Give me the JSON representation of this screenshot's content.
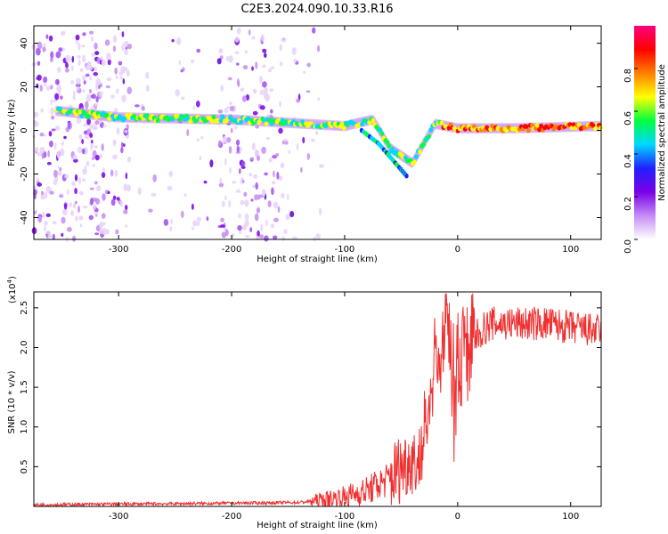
{
  "figure_title": "C2E3.2024.090.10.33.R16",
  "chart_data": [
    {
      "type": "heatmap",
      "xlabel": "Height of straight line (km)",
      "ylabel": "Frequency (Hz)",
      "xlim": [
        -375,
        127
      ],
      "ylim": [
        -50,
        48
      ],
      "xticks": [
        -300,
        -200,
        -100,
        0,
        100
      ],
      "yticks": [
        -40,
        -20,
        0,
        20,
        40
      ],
      "colorbar": {
        "label": "Normalized spectral amplitude",
        "range": [
          0,
          1
        ],
        "ticks": [
          "0.0",
          "0.2",
          "0.4",
          "0.6",
          "0.8"
        ],
        "colormap": [
          "#ffffff",
          "#c58cf5",
          "#7a00e6",
          "#2020ff",
          "#00d8ff",
          "#00ff40",
          "#ffff00",
          "#ff8000",
          "#ff0000",
          "#ff0080"
        ]
      },
      "ridge": {
        "description_points_x": [
          -355,
          -300,
          -200,
          -100,
          -75,
          -60,
          -40,
          -20,
          0,
          50,
          125
        ],
        "description_points_y": [
          9,
          6,
          5,
          2,
          5,
          -8,
          -15,
          3,
          1,
          1,
          2
        ],
        "branch_x": [
          -85,
          -70,
          -60,
          -50,
          -45
        ],
        "branch_y": [
          0,
          -6,
          -12,
          -18,
          -21
        ]
      }
    },
    {
      "type": "line",
      "xlabel": "Height of straight line (km)",
      "ylabel": "SNR (10 * v/v)",
      "yscale_label": "(x10",
      "yscale_exp": "4",
      "yscale_close": ")",
      "xlim": [
        -375,
        127
      ],
      "ylim": [
        0,
        2.7
      ],
      "xticks": [
        -300,
        -200,
        -100,
        0,
        100
      ],
      "yticks": [
        "0.5",
        "1.0",
        "1.5",
        "2.0",
        "2.5"
      ],
      "series": [
        {
          "color": "#f03030",
          "x": [
            -375,
            -300,
            -200,
            -140,
            -120,
            -100,
            -80,
            -60,
            -50,
            -40,
            -35,
            -30,
            -25,
            -22,
            -20,
            -18,
            -15,
            -10,
            -5,
            0,
            10,
            20,
            30,
            40,
            60,
            80,
            100,
            127
          ],
          "y": [
            0.02,
            0.03,
            0.04,
            0.05,
            0.08,
            0.12,
            0.2,
            0.35,
            0.5,
            0.6,
            0.55,
            0.8,
            1.2,
            1.6,
            2.2,
            1.5,
            1.8,
            2.3,
            1.5,
            1.8,
            2.0,
            2.2,
            2.3,
            2.3,
            2.3,
            2.3,
            2.25,
            2.2
          ]
        }
      ]
    }
  ]
}
